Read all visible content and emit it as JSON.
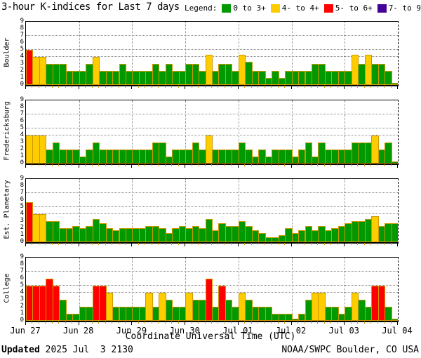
{
  "title": "3-hour K-indices for Last 7 days",
  "legend": {
    "label": "Legend:",
    "items": [
      {
        "label": "0 to 3+",
        "color": "#009900"
      },
      {
        "label": "4- to 4+",
        "color": "#ffcc00"
      },
      {
        "label": "5- to 6+",
        "color": "#ff0000"
      },
      {
        "label": "7- to 9",
        "color": "#440099"
      }
    ]
  },
  "footer": {
    "updated_label": "Updated",
    "updated_value": " 2025 Jul  3 2130",
    "source": "NOAA/SWPC Boulder, CO USA"
  },
  "chart_data": {
    "type": "bar",
    "title": "3-hour K-indices for Last 7 days",
    "xlabel": "Coordinate Universal Time (UTC)",
    "x_tick_labels": [
      "Jun 27",
      "Jun 28",
      "Jun 29",
      "Jun 30",
      "Jul 01",
      "Jul 02",
      "Jul 03",
      "Jul 04"
    ],
    "y_tick_labels": [
      "9",
      "8",
      "7",
      "6",
      "5",
      "4",
      "3",
      "2",
      "1",
      "0"
    ],
    "ylim": [
      0,
      9
    ],
    "bars_per_day": 8,
    "days": 7,
    "grid_levels": [
      4,
      5,
      7
    ],
    "colors": {
      "green": "#009900",
      "yellow": "#ffcc00",
      "red": "#ff0000",
      "purple": "#440099",
      "bar_border": "#cc9900"
    },
    "color_thresholds": {
      "yellow_min": 3.5,
      "red_min": 4.5,
      "purple_min": 6.5
    },
    "panels": [
      {
        "station": "Boulder",
        "k_values": [
          5,
          4,
          4,
          3,
          3,
          3,
          2,
          2,
          2,
          3,
          4,
          2,
          2,
          2,
          3,
          2,
          2,
          2,
          2,
          3,
          2,
          3,
          2,
          2,
          3,
          3,
          2,
          4.3,
          2,
          3,
          3,
          2,
          4.3,
          3.3,
          2,
          2,
          1,
          2,
          1,
          2,
          2,
          2,
          2,
          3,
          3,
          2,
          2,
          2,
          2,
          4.3,
          3,
          4.3,
          3,
          3,
          2,
          0.3
        ]
      },
      {
        "station": "Fredericksburg",
        "k_values": [
          4,
          4,
          4,
          2,
          3,
          2,
          2,
          2,
          1,
          2,
          3,
          2,
          2,
          2,
          2,
          2,
          2,
          2,
          2,
          3,
          3,
          1,
          2,
          2,
          2,
          3,
          2,
          4,
          2,
          2,
          2,
          2,
          3,
          2,
          1,
          2,
          1,
          2,
          2,
          2,
          1,
          2,
          3,
          1,
          3,
          2,
          2,
          2,
          2,
          3,
          3,
          3,
          4,
          2,
          3,
          0.3
        ]
      },
      {
        "station": "Est. Planetary",
        "k_values": [
          5.7,
          4,
          4,
          3,
          3,
          2,
          2,
          2.3,
          2,
          2.3,
          3.3,
          2.7,
          2,
          1.7,
          2,
          2,
          2,
          2,
          2.3,
          2.3,
          2,
          1.3,
          2,
          2.3,
          2,
          2.3,
          2,
          3.3,
          1.7,
          2.7,
          2.3,
          2.3,
          3,
          2.3,
          1.7,
          1.3,
          0.7,
          0.7,
          1,
          2,
          1.3,
          1.7,
          2.3,
          1.7,
          2.3,
          1.7,
          2,
          2.3,
          2.7,
          3,
          3,
          3.3,
          3.7,
          2.3,
          2.7,
          2.7
        ]
      },
      {
        "station": "College",
        "k_values": [
          5,
          5,
          5,
          6,
          5,
          3,
          1,
          1,
          2,
          2,
          5,
          5,
          4,
          2,
          2,
          2,
          2,
          2,
          4,
          2,
          4,
          3,
          2,
          2,
          4,
          3,
          3,
          6,
          2,
          5,
          3,
          2,
          4,
          3,
          2,
          2,
          2,
          1,
          1,
          1,
          0.3,
          1,
          3,
          4,
          4,
          2,
          2,
          1,
          2,
          4,
          3,
          2,
          5,
          5,
          2,
          0.3
        ]
      }
    ]
  }
}
